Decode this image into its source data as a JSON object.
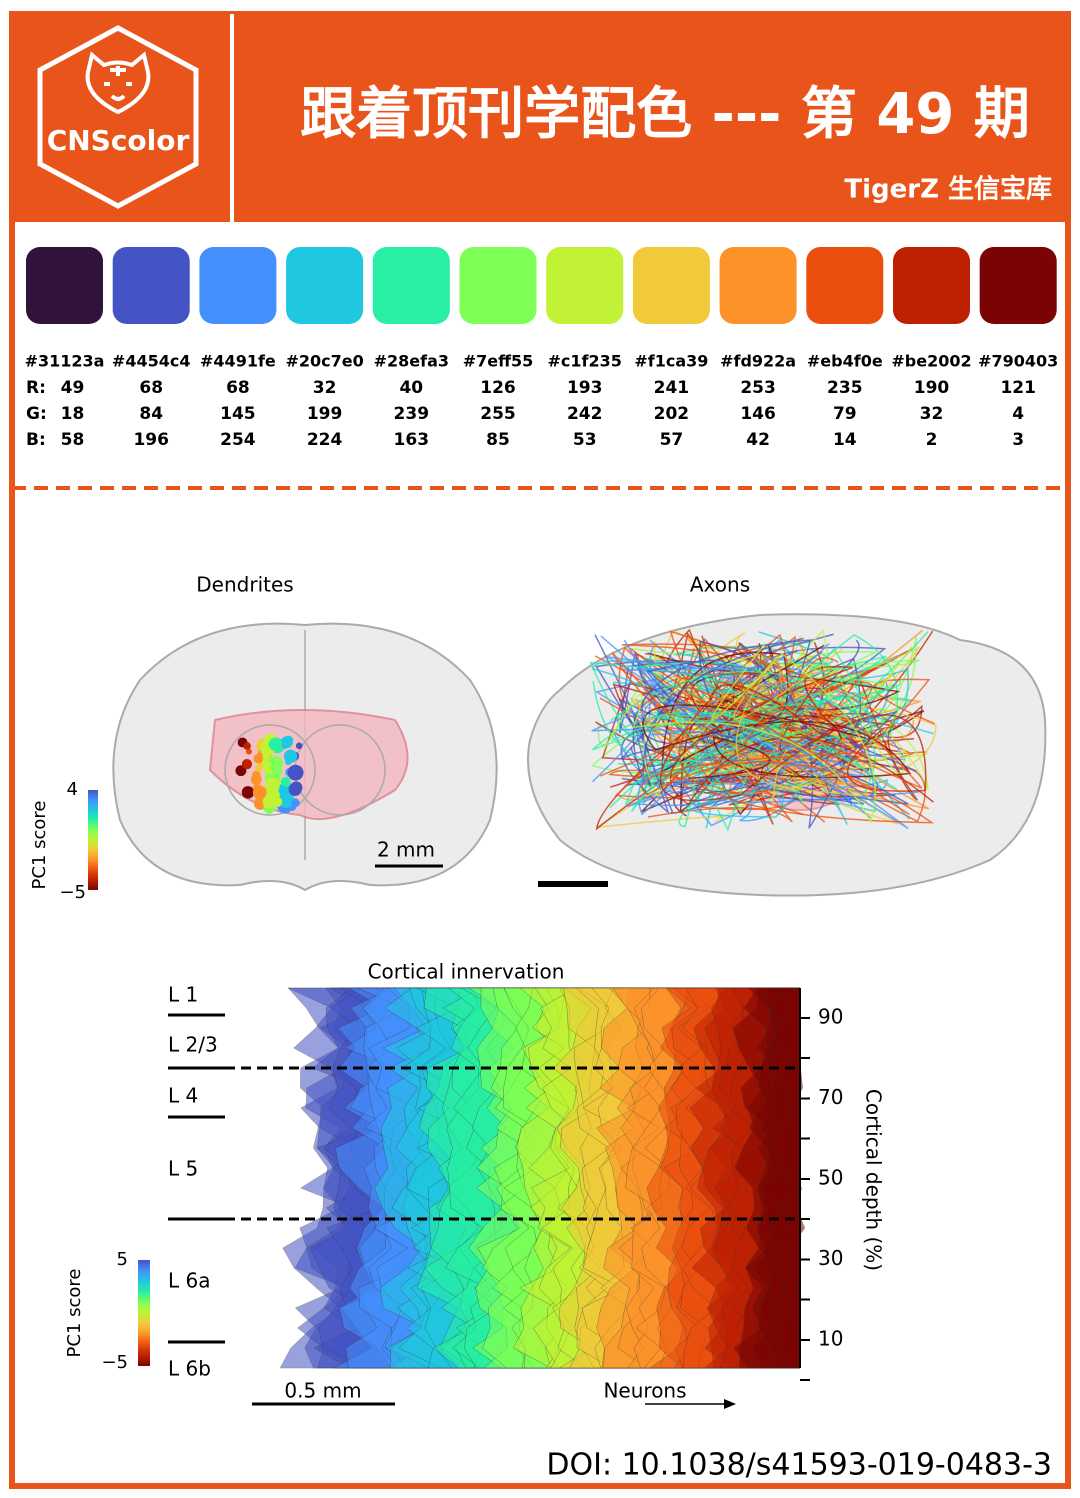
{
  "header": {
    "logo": "CNScolor",
    "title": "跟着顶刊学配色 --- 第 49 期",
    "subtitle": "TigerZ 生信宝库"
  },
  "palette": {
    "row_labels": [
      "R:",
      "G:",
      "B:"
    ],
    "colors": [
      {
        "hex": "#31123a",
        "r": "49",
        "g": "18",
        "b": "58"
      },
      {
        "hex": "#4454c4",
        "r": "68",
        "g": "84",
        "b": "196"
      },
      {
        "hex": "#4491fe",
        "r": "68",
        "g": "145",
        "b": "254"
      },
      {
        "hex": "#20c7e0",
        "r": "32",
        "g": "199",
        "b": "224"
      },
      {
        "hex": "#28efa3",
        "r": "40",
        "g": "239",
        "b": "163"
      },
      {
        "hex": "#7eff55",
        "r": "126",
        "g": "255",
        "b": "85"
      },
      {
        "hex": "#c1f235",
        "r": "193",
        "g": "242",
        "b": "53"
      },
      {
        "hex": "#f1ca39",
        "r": "241",
        "g": "202",
        "b": "57"
      },
      {
        "hex": "#fd922a",
        "r": "253",
        "g": "146",
        "b": "42"
      },
      {
        "hex": "#eb4f0e",
        "r": "235",
        "g": "79",
        "b": "14"
      },
      {
        "hex": "#be2002",
        "r": "190",
        "g": "32",
        "b": "2"
      },
      {
        "hex": "#790403",
        "r": "121",
        "g": "4",
        "b": "3"
      }
    ]
  },
  "figure_top": {
    "left_title": "Dendrites",
    "right_title": "Axons",
    "colorbar_label": "PC1 score",
    "colorbar_max": "4",
    "colorbar_min": "−5",
    "scale_bar": "2 mm"
  },
  "figure_bottom": {
    "title": "Cortical innervation",
    "layers": [
      "L 1",
      "L 2/3",
      "L 4",
      "L 5",
      "L 6a",
      "L 6b"
    ],
    "depth_ticks": [
      "90",
      "70",
      "50",
      "30",
      "10"
    ],
    "depth_label": "Cortical depth (%)",
    "colorbar_label": "PC1 score",
    "colorbar_max": "5",
    "colorbar_min": "−5",
    "scale_bar": "0.5 mm",
    "x_label": "Neurons"
  },
  "footer": {
    "doi": "DOI: 10.1038/s41593-019-0483-3"
  }
}
